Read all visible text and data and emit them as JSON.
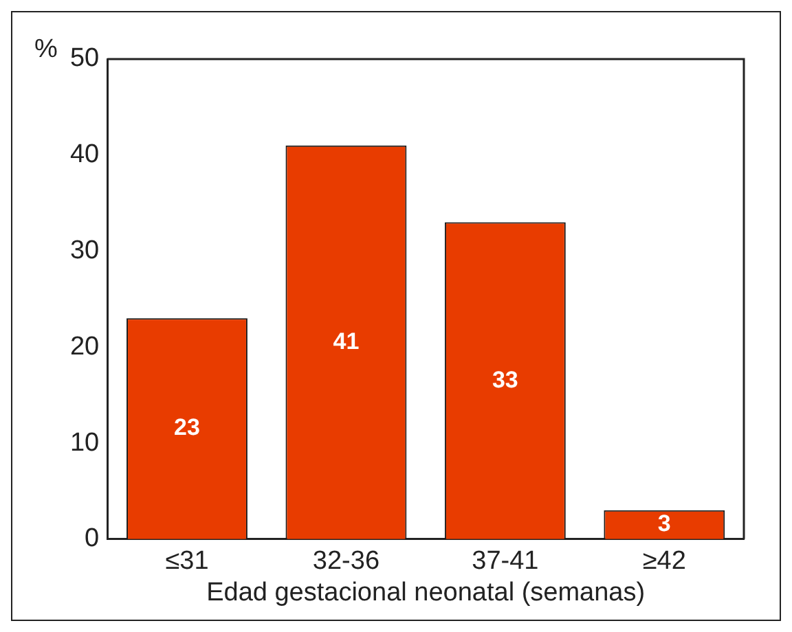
{
  "chart_data": {
    "type": "bar",
    "xlabel": "Edad gestacional neonatal (semanas)",
    "ylabel": "%",
    "categories": [
      "≤31",
      "32-36",
      "37-41",
      "≥42"
    ],
    "values": [
      23,
      41,
      33,
      3
    ],
    "color": "#e83c00",
    "ylim": [
      0,
      50
    ],
    "yticks": [
      0,
      10,
      20,
      30,
      40,
      50
    ],
    "grid": false,
    "legend": false,
    "data_labels": true
  }
}
